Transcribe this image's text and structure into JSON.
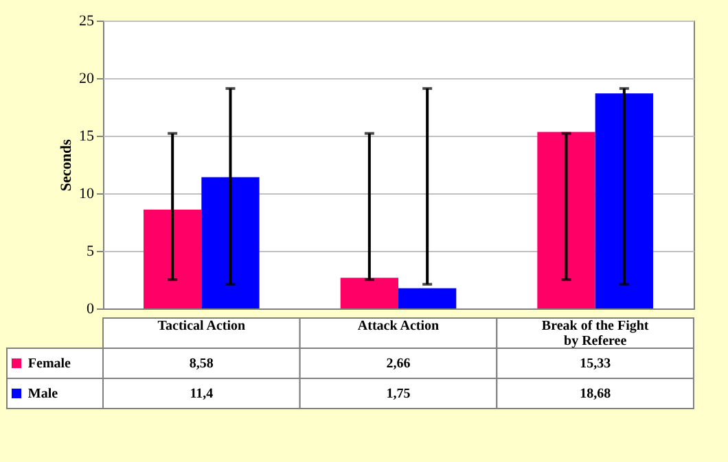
{
  "chart_data": {
    "type": "bar",
    "ylabel": "Seconds",
    "categories": [
      "Tactical Action",
      "Attack Action",
      "Break of the Fight by Referee"
    ],
    "series": [
      {
        "name": "Female",
        "color": "#ff0066",
        "values": [
          8.58,
          2.66,
          15.33
        ],
        "errors": [
          [
            2.5,
            15.2
          ],
          [
            2.5,
            15.2
          ],
          [
            2.5,
            15.2
          ]
        ],
        "value_labels": [
          "8,58",
          "2,66",
          "15,33"
        ]
      },
      {
        "name": "Male",
        "color": "#0000ff",
        "values": [
          11.4,
          1.75,
          18.68
        ],
        "errors": [
          [
            2.1,
            19.1
          ],
          [
            2.1,
            19.1
          ],
          [
            2.1,
            19.1
          ]
        ],
        "value_labels": [
          "11,4",
          "1,75",
          "18,68"
        ]
      }
    ],
    "ylim": [
      0,
      25
    ],
    "yticks": [
      0,
      5,
      10,
      15,
      20,
      25
    ],
    "grid": "y",
    "legend": "bottom"
  }
}
